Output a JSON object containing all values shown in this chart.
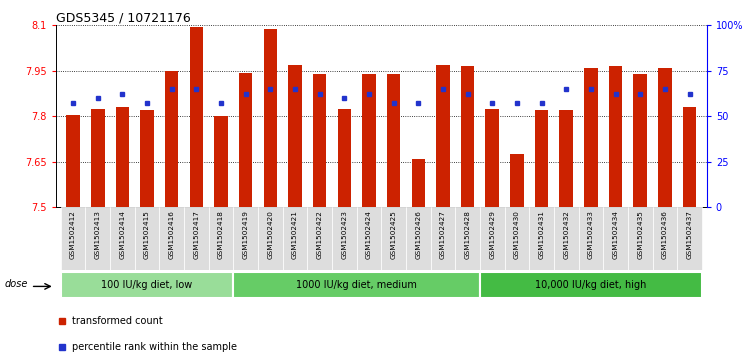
{
  "title": "GDS5345 / 10721176",
  "samples": [
    "GSM1502412",
    "GSM1502413",
    "GSM1502414",
    "GSM1502415",
    "GSM1502416",
    "GSM1502417",
    "GSM1502418",
    "GSM1502419",
    "GSM1502420",
    "GSM1502421",
    "GSM1502422",
    "GSM1502423",
    "GSM1502424",
    "GSM1502425",
    "GSM1502426",
    "GSM1502427",
    "GSM1502428",
    "GSM1502429",
    "GSM1502430",
    "GSM1502431",
    "GSM1502432",
    "GSM1502433",
    "GSM1502434",
    "GSM1502435",
    "GSM1502436",
    "GSM1502437"
  ],
  "bar_values": [
    7.805,
    7.825,
    7.83,
    7.82,
    7.95,
    8.095,
    7.8,
    7.943,
    8.088,
    7.97,
    7.94,
    7.825,
    7.94,
    7.94,
    7.66,
    7.97,
    7.965,
    7.825,
    7.675,
    7.82,
    7.82,
    7.96,
    7.965,
    7.94,
    7.96,
    7.83
  ],
  "percentile_values": [
    57,
    60,
    62,
    57,
    65,
    65,
    57,
    62,
    65,
    65,
    62,
    60,
    62,
    57,
    57,
    65,
    62,
    57,
    57,
    57,
    65,
    65,
    62,
    62,
    65,
    62
  ],
  "groups": [
    {
      "label": "100 IU/kg diet, low",
      "start": 0,
      "end": 7,
      "color": "#99dd99"
    },
    {
      "label": "1000 IU/kg diet, medium",
      "start": 7,
      "end": 17,
      "color": "#66cc66"
    },
    {
      "label": "10,000 IU/kg diet, high",
      "start": 17,
      "end": 26,
      "color": "#44bb44"
    }
  ],
  "y_min": 7.5,
  "y_max": 8.1,
  "y_ticks": [
    7.5,
    7.65,
    7.8,
    7.95,
    8.1
  ],
  "y_tick_labels": [
    "7.5",
    "7.65",
    "7.8",
    "7.95",
    "8.1"
  ],
  "right_y_ticks": [
    0,
    25,
    50,
    75,
    100
  ],
  "right_y_labels": [
    "0",
    "25",
    "50",
    "75",
    "100%"
  ],
  "bar_color": "#cc2200",
  "dot_color": "#2233cc",
  "bar_width": 0.55,
  "plot_bg_color": "#ffffff",
  "xtick_bg_color": "#dddddd",
  "legend_items": [
    {
      "label": "transformed count",
      "color": "#cc2200"
    },
    {
      "label": "percentile rank within the sample",
      "color": "#2233cc"
    }
  ]
}
